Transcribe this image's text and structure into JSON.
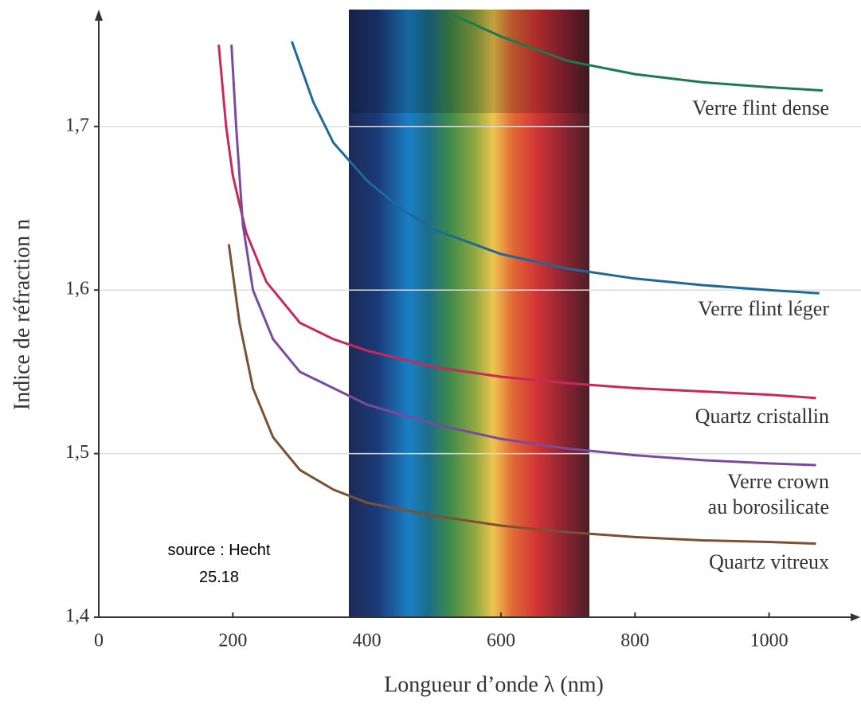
{
  "chart_data": {
    "type": "line",
    "xlabel": "Longueur d’onde  λ (nm)",
    "ylabel": "Indice de réfraction  n",
    "xlim": [
      0,
      1130
    ],
    "ylim": [
      1.4,
      1.77
    ],
    "xticks": [
      0,
      200,
      400,
      600,
      800,
      1000
    ],
    "yticks": [
      {
        "value": 1.4,
        "label": "1,4"
      },
      {
        "value": 1.5,
        "label": "1,5"
      },
      {
        "value": 1.6,
        "label": "1,6"
      },
      {
        "value": 1.7,
        "label": "1,7"
      }
    ],
    "grid": true,
    "annotations": [
      "source : Hecht",
      "25.18"
    ],
    "series": [
      {
        "name": "Verre flint dense",
        "color": "#1b7a4e",
        "x": [
          530,
          600,
          700,
          800,
          900,
          1000,
          1080
        ],
        "values": [
          1.768,
          1.755,
          1.74,
          1.732,
          1.727,
          1.724,
          1.722
        ]
      },
      {
        "name": "Verre flint léger",
        "color": "#1e6a96",
        "x": [
          288,
          320,
          350,
          400,
          450,
          500,
          600,
          700,
          800,
          900,
          1000,
          1075
        ],
        "values": [
          1.752,
          1.715,
          1.69,
          1.667,
          1.65,
          1.637,
          1.622,
          1.613,
          1.607,
          1.603,
          1.6,
          1.598
        ]
      },
      {
        "name": "Quartz cristallin",
        "color": "#c8285a",
        "x": [
          179,
          190,
          200,
          220,
          250,
          300,
          350,
          400,
          500,
          600,
          700,
          800,
          900,
          1000,
          1070
        ],
        "values": [
          1.75,
          1.7,
          1.67,
          1.635,
          1.605,
          1.58,
          1.57,
          1.563,
          1.553,
          1.547,
          1.543,
          1.54,
          1.538,
          1.536,
          1.534
        ]
      },
      {
        "name": "Verre crown\nau borosilicate",
        "color": "#7b4a9e",
        "x": [
          198,
          205,
          215,
          230,
          260,
          300,
          350,
          400,
          500,
          600,
          700,
          800,
          900,
          1000,
          1070
        ],
        "values": [
          1.75,
          1.7,
          1.64,
          1.6,
          1.57,
          1.55,
          1.54,
          1.53,
          1.518,
          1.509,
          1.503,
          1.499,
          1.496,
          1.494,
          1.493
        ]
      },
      {
        "name": "Quartz vitreux",
        "color": "#7a5233",
        "x": [
          194,
          210,
          230,
          260,
          300,
          350,
          400,
          500,
          600,
          700,
          800,
          900,
          1000,
          1070
        ],
        "values": [
          1.628,
          1.58,
          1.54,
          1.51,
          1.49,
          1.478,
          1.47,
          1.462,
          1.456,
          1.452,
          1.449,
          1.447,
          1.446,
          1.445
        ]
      }
    ]
  }
}
